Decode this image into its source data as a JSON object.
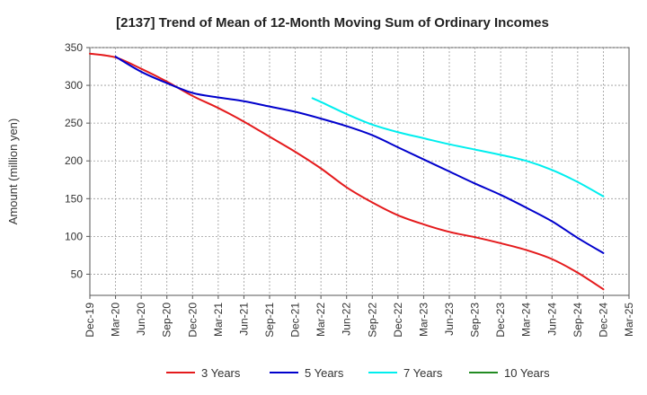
{
  "chart_data": {
    "type": "line",
    "title": "[2137]  Trend of Mean of 12-Month Moving Sum of Ordinary Incomes",
    "xlabel": "",
    "ylabel": "Amount (million yen)",
    "ylim": [
      22,
      350
    ],
    "yticks": [
      50,
      100,
      150,
      200,
      250,
      300,
      350
    ],
    "grid": true,
    "legend_position": "bottom",
    "x_start": "Dec-19",
    "x_end": "Mar-25",
    "categories": [
      "Dec-19",
      "Mar-20",
      "Jun-20",
      "Sep-20",
      "Dec-20",
      "Mar-21",
      "Jun-21",
      "Sep-21",
      "Dec-21",
      "Mar-22",
      "Jun-22",
      "Sep-22",
      "Dec-22",
      "Mar-23",
      "Jun-23",
      "Sep-23",
      "Dec-23",
      "Mar-24",
      "Jun-24",
      "Sep-24",
      "Dec-24",
      "Mar-25"
    ],
    "series": [
      {
        "name": "3 Years",
        "color": "#e41a1c",
        "points": [
          [
            0,
            342
          ],
          [
            1,
            337
          ],
          [
            2,
            322
          ],
          [
            3,
            305
          ],
          [
            4,
            286
          ],
          [
            5,
            270
          ],
          [
            6,
            252
          ],
          [
            7,
            232
          ],
          [
            8,
            212
          ],
          [
            9,
            190
          ],
          [
            10,
            165
          ],
          [
            11,
            145
          ],
          [
            12,
            128
          ],
          [
            13,
            116
          ],
          [
            14,
            106
          ],
          [
            15,
            99
          ],
          [
            16,
            91
          ],
          [
            17,
            82
          ],
          [
            18,
            70
          ],
          [
            19,
            52
          ],
          [
            20,
            30
          ]
        ]
      },
      {
        "name": "5 Years",
        "color": "#0000cc",
        "points": [
          [
            1,
            338
          ],
          [
            2,
            318
          ],
          [
            3,
            303
          ],
          [
            4,
            290
          ],
          [
            5,
            284
          ],
          [
            6,
            279
          ],
          [
            7,
            272
          ],
          [
            8,
            265
          ],
          [
            9,
            256
          ],
          [
            10,
            246
          ],
          [
            11,
            234
          ],
          [
            12,
            218
          ],
          [
            13,
            202
          ],
          [
            14,
            186
          ],
          [
            15,
            170
          ],
          [
            16,
            155
          ],
          [
            17,
            138
          ],
          [
            18,
            120
          ],
          [
            19,
            98
          ],
          [
            20,
            78
          ]
        ]
      },
      {
        "name": "7 Years",
        "color": "#00eeee",
        "points": [
          [
            8.67,
            283
          ],
          [
            9,
            278
          ],
          [
            10,
            262
          ],
          [
            11,
            248
          ],
          [
            12,
            238
          ],
          [
            13,
            230
          ],
          [
            14,
            222
          ],
          [
            15,
            215
          ],
          [
            16,
            208
          ],
          [
            17,
            200
          ],
          [
            18,
            188
          ],
          [
            19,
            172
          ],
          [
            20,
            153
          ]
        ]
      },
      {
        "name": "10 Years",
        "color": "#228b22",
        "points": []
      }
    ]
  }
}
